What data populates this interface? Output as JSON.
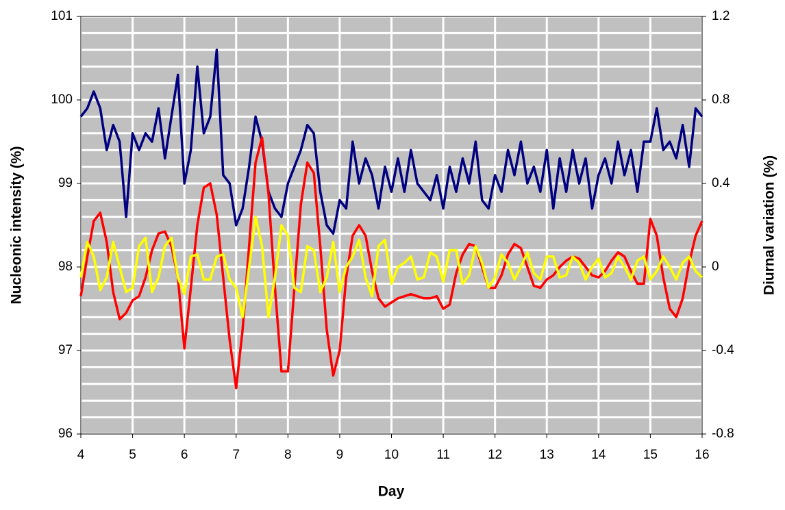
{
  "chart_data": {
    "type": "line",
    "x_label": "Day",
    "y_label": "Nucleonic intensity (%)",
    "y2_label": "Diurnal variation (%)",
    "x": [
      4,
      4.125,
      4.25,
      4.375,
      4.5,
      4.625,
      4.75,
      4.875,
      5,
      5.125,
      5.25,
      5.375,
      5.5,
      5.625,
      5.75,
      5.875,
      6,
      6.125,
      6.25,
      6.375,
      6.5,
      6.625,
      6.75,
      6.875,
      7,
      7.125,
      7.25,
      7.375,
      7.5,
      7.625,
      7.75,
      7.875,
      8,
      8.125,
      8.25,
      8.375,
      8.5,
      8.625,
      8.75,
      8.875,
      9,
      9.125,
      9.25,
      9.375,
      9.5,
      9.625,
      9.75,
      9.875,
      10,
      10.125,
      10.25,
      10.375,
      10.5,
      10.625,
      10.75,
      10.875,
      11,
      11.125,
      11.25,
      11.375,
      11.5,
      11.625,
      11.75,
      11.875,
      12,
      12.125,
      12.25,
      12.375,
      12.5,
      12.625,
      12.75,
      12.875,
      13,
      13.125,
      13.25,
      13.375,
      13.5,
      13.625,
      13.75,
      13.875,
      14,
      14.125,
      14.25,
      14.375,
      14.5,
      14.625,
      14.75,
      14.875,
      15,
      15.125,
      15.25,
      15.375,
      15.5,
      15.625,
      15.75,
      15.875,
      16
    ],
    "series": [
      {
        "color": "#000080",
        "axis": "y",
        "values": [
          99.8,
          99.9,
          100.1,
          99.9,
          99.4,
          99.7,
          99.5,
          98.6,
          99.6,
          99.4,
          99.6,
          99.5,
          99.9,
          99.3,
          99.8,
          100.3,
          99.0,
          99.4,
          100.4,
          99.6,
          99.8,
          100.6,
          99.1,
          99.0,
          98.5,
          98.7,
          99.2,
          99.8,
          99.5,
          98.9,
          98.7,
          98.6,
          99.0,
          99.2,
          99.4,
          99.7,
          99.6,
          98.9,
          98.5,
          98.4,
          98.8,
          98.7,
          99.5,
          99.0,
          99.3,
          99.1,
          98.7,
          99.2,
          98.9,
          99.3,
          98.9,
          99.4,
          99.0,
          98.9,
          98.8,
          99.1,
          98.7,
          99.2,
          98.9,
          99.3,
          99.0,
          99.5,
          98.8,
          98.7,
          99.1,
          98.9,
          99.4,
          99.1,
          99.5,
          99.0,
          99.2,
          98.9,
          99.4,
          98.7,
          99.3,
          98.9,
          99.4,
          99.0,
          99.3,
          98.7,
          99.1,
          99.3,
          99.0,
          99.5,
          99.1,
          99.4,
          98.9,
          99.5,
          99.5,
          99.9,
          99.4,
          99.5,
          99.3,
          99.7,
          99.2,
          99.9,
          99.8
        ]
      },
      {
        "color": "#ff0000",
        "axis": "y2",
        "values": [
          -0.14,
          0.05,
          0.22,
          0.26,
          0.12,
          -0.12,
          -0.25,
          -0.22,
          -0.16,
          -0.14,
          -0.05,
          0.08,
          0.16,
          0.17,
          0.1,
          -0.05,
          -0.39,
          -0.1,
          0.2,
          0.38,
          0.4,
          0.25,
          -0.05,
          -0.35,
          -0.58,
          -0.3,
          0.1,
          0.5,
          0.62,
          0.35,
          -0.1,
          -0.5,
          -0.5,
          -0.1,
          0.3,
          0.5,
          0.45,
          0.1,
          -0.3,
          -0.52,
          -0.4,
          -0.05,
          0.15,
          0.2,
          0.15,
          -0.02,
          -0.15,
          -0.19,
          -0.17,
          -0.15,
          -0.14,
          -0.13,
          -0.14,
          -0.15,
          -0.15,
          -0.14,
          -0.2,
          -0.18,
          -0.03,
          0.06,
          0.11,
          0.1,
          0.0,
          -0.1,
          -0.1,
          -0.04,
          0.06,
          0.11,
          0.09,
          0.0,
          -0.09,
          -0.1,
          -0.06,
          -0.04,
          0.0,
          0.03,
          0.05,
          0.04,
          0.0,
          -0.04,
          -0.05,
          -0.02,
          0.03,
          0.07,
          0.05,
          -0.02,
          -0.08,
          -0.08,
          0.23,
          0.15,
          -0.05,
          -0.2,
          -0.24,
          -0.15,
          0.02,
          0.15,
          0.22
        ]
      },
      {
        "color": "#ffff00",
        "axis": "y2",
        "values": [
          -0.05,
          0.12,
          0.05,
          -0.11,
          -0.05,
          0.12,
          0.0,
          -0.12,
          -0.1,
          0.1,
          0.14,
          -0.12,
          -0.05,
          0.1,
          0.14,
          -0.05,
          -0.13,
          0.05,
          0.06,
          -0.06,
          -0.06,
          0.05,
          0.06,
          -0.06,
          -0.1,
          -0.24,
          0.0,
          0.24,
          0.1,
          -0.24,
          -0.05,
          0.2,
          0.15,
          -0.1,
          -0.12,
          0.1,
          0.08,
          -0.12,
          -0.05,
          0.12,
          -0.12,
          0.0,
          0.05,
          0.13,
          -0.05,
          -0.14,
          0.1,
          0.13,
          -0.08,
          0.0,
          0.02,
          0.05,
          -0.06,
          -0.05,
          0.07,
          0.05,
          -0.07,
          0.08,
          0.08,
          -0.08,
          -0.04,
          0.1,
          0.02,
          -0.1,
          -0.05,
          0.06,
          0.02,
          -0.06,
          0.0,
          0.07,
          -0.03,
          -0.06,
          0.05,
          0.05,
          -0.05,
          -0.04,
          0.05,
          0.02,
          -0.06,
          0.0,
          0.04,
          -0.05,
          -0.03,
          0.05,
          0.0,
          -0.06,
          0.03,
          0.05,
          -0.06,
          -0.02,
          0.05,
          0.0,
          -0.06,
          0.02,
          0.05,
          -0.02,
          -0.05
        ]
      }
    ],
    "xlim": [
      4,
      16
    ],
    "xticks": [
      4,
      5,
      6,
      7,
      8,
      9,
      10,
      11,
      12,
      13,
      14,
      15,
      16
    ],
    "ylim": [
      96,
      101
    ],
    "yticks": [
      96,
      97,
      98,
      99,
      100,
      101
    ],
    "y_minor_ticks": [
      96.2,
      96.4,
      96.6,
      96.8,
      97.2,
      97.4,
      97.6,
      97.8,
      98.2,
      98.4,
      98.6,
      98.8,
      99.2,
      99.4,
      99.6,
      99.8,
      100.2,
      100.4,
      100.6,
      100.8
    ],
    "y2lim": [
      -0.8,
      1.2
    ],
    "y2ticks": [
      -0.8,
      -0.4,
      0,
      0.4,
      0.8,
      1.2
    ],
    "grid": true,
    "plot_background": "#c0c0c0",
    "grid_color": "#ffffff"
  }
}
